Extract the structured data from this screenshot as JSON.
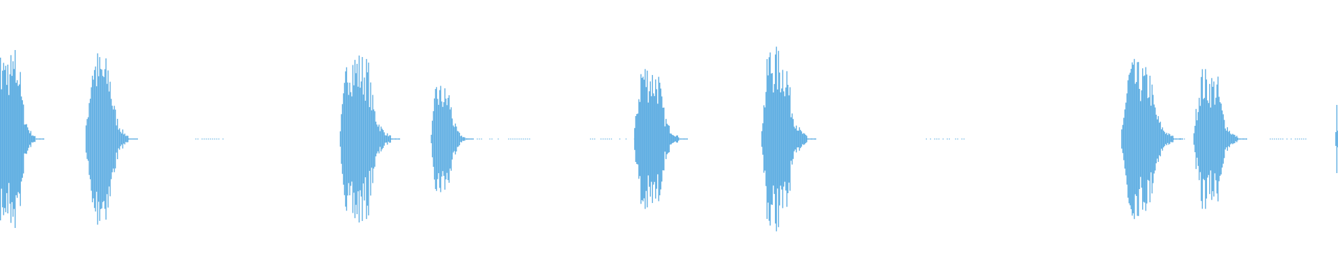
{
  "chart_data": {
    "type": "area",
    "subtype": "audio-waveform",
    "title": "",
    "xlabel": "",
    "ylabel": "",
    "xlim": [
      0,
      1
    ],
    "ylim": [
      -1,
      1
    ],
    "grid": false,
    "legend": "none",
    "color": "#5dade2",
    "bursts": [
      {
        "start": 0.0,
        "end": 0.026,
        "amplitude": 0.68
      },
      {
        "start": 0.064,
        "end": 0.096,
        "amplitude": 0.68
      },
      {
        "start": 0.254,
        "end": 0.292,
        "amplitude": 0.7
      },
      {
        "start": 0.322,
        "end": 0.347,
        "amplitude": 0.43
      },
      {
        "start": 0.474,
        "end": 0.507,
        "amplitude": 0.6
      },
      {
        "start": 0.569,
        "end": 0.603,
        "amplitude": 0.72
      },
      {
        "start": 0.838,
        "end": 0.877,
        "amplitude": 0.6
      },
      {
        "start": 0.892,
        "end": 0.925,
        "amplitude": 0.54
      },
      {
        "start": 0.998,
        "end": 1.0,
        "amplitude": 0.4
      }
    ],
    "quiet_segments": [
      {
        "start": 0.146,
        "end": 0.168
      },
      {
        "start": 0.347,
        "end": 0.397
      },
      {
        "start": 0.441,
        "end": 0.474
      },
      {
        "start": 0.692,
        "end": 0.722
      },
      {
        "start": 0.877,
        "end": 0.886
      },
      {
        "start": 0.949,
        "end": 0.977
      }
    ]
  }
}
